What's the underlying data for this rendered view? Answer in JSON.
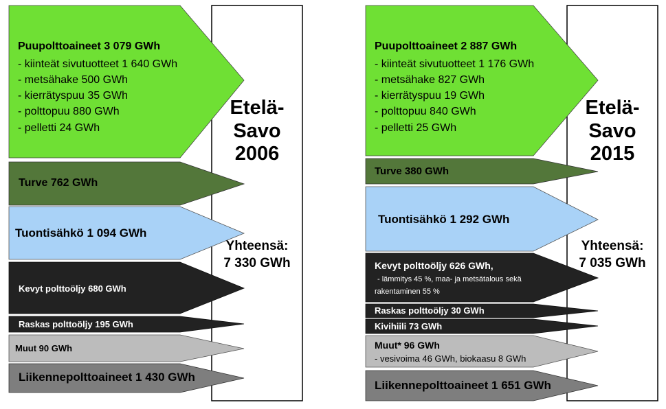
{
  "panels": [
    {
      "title_lines": [
        "Etelä-",
        "Savo",
        "2006"
      ],
      "total_label": "Yhteensä:",
      "total_value": "7 330 GWh",
      "flows": [
        {
          "label": "Puupolttoaineet 3 079 GWh",
          "color": "#6fe034",
          "sub": [
            "- kiinteät sivutuotteet 1 640 GWh",
            "- metsähake 500 GWh",
            "- kierrätyspuu 35 GWh",
            "- polttopuu 880 GWh",
            "- pelletti 24 GWh"
          ]
        },
        {
          "label": "Turve 762 GWh",
          "color": "#53773a",
          "sub": []
        },
        {
          "label": "Tuontisähkö 1 094 GWh",
          "color": "#a9d2f7",
          "sub": []
        },
        {
          "label": "Kevyt polttoöljy 680 GWh",
          "color": "#222222",
          "sub": []
        },
        {
          "label": "Raskas polttoöljy 195 GWh",
          "color": "#222222",
          "sub": []
        },
        {
          "label": "Muut 90 GWh",
          "color": "#bcbcbc",
          "sub": []
        },
        {
          "label": "Liikennepolttoaineet 1 430 GWh",
          "color": "#7e7e7e",
          "sub": []
        }
      ]
    },
    {
      "title_lines": [
        "Etelä-",
        "Savo",
        "2015"
      ],
      "total_label": "Yhteensä:",
      "total_value": "7 035 GWh",
      "flows": [
        {
          "label": "Puupolttoaineet 2 887 GWh",
          "color": "#6fe034",
          "sub": [
            "- kiinteät sivutuotteet 1 176 GWh",
            "- metsähake 827 GWh",
            "- kierrätyspuu 19 GWh",
            "- polttopuu 840 GWh",
            "- pelletti 25 GWh"
          ]
        },
        {
          "label": "Turve 380 GWh",
          "color": "#53773a",
          "sub": []
        },
        {
          "label": "Tuontisähkö 1 292 GWh",
          "color": "#a9d2f7",
          "sub": []
        },
        {
          "label": "Kevyt polttoöljy 626 GWh,",
          "color": "#222222",
          "sub": [
            "- lämmitys 45 %, maa- ja metsätalous sekä",
            "rakentaminen 55 %"
          ]
        },
        {
          "label": "Raskas polttoöljy 30 GWh",
          "color": "#222222",
          "sub": []
        },
        {
          "label": "Kivihiili 73 GWh",
          "color": "#222222",
          "sub": []
        },
        {
          "label": "Muut* 96 GWh",
          "color": "#bcbcbc",
          "sub": [
            "- vesivoima 46 GWh, biokaasu 8 GWh"
          ]
        },
        {
          "label": "Liikennepolttoaineet 1 651 GWh",
          "color": "#7e7e7e",
          "sub": []
        }
      ]
    }
  ]
}
